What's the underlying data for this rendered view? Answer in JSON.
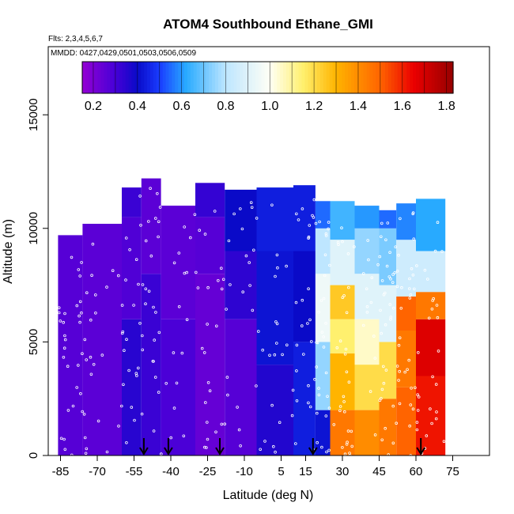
{
  "chart_data": {
    "type": "heatmap",
    "title": "ATOM4 Southbound Ethane_GMI",
    "flights_label": "Flts: 2,3,4,5,6,7",
    "dates_label": "MMDD: 0427,0429,0501,0503,0506,0509",
    "xlabel": "Latitude (deg N)",
    "ylabel": "Altitude (m)",
    "xlim": [
      -90,
      90
    ],
    "ylim": [
      0,
      18000
    ],
    "x_ticks": [
      -85,
      -70,
      -55,
      -40,
      -25,
      -10,
      5,
      15,
      30,
      45,
      60,
      75
    ],
    "x_tick_labels": [
      "-85",
      "-70",
      "-55",
      "-40",
      "-25",
      "-10",
      "5",
      "15",
      "30",
      "45",
      "60",
      "75"
    ],
    "y_ticks": [
      0,
      5000,
      10000,
      15000
    ],
    "y_tick_labels": [
      "0",
      "5000",
      "10000",
      "15000"
    ],
    "colorbar": {
      "min": 0.15,
      "max": 1.83,
      "ticks": [
        0.2,
        0.4,
        0.6,
        0.8,
        1.0,
        1.2,
        1.4,
        1.6,
        1.8
      ],
      "tick_labels": [
        "0.2",
        "0.4",
        "0.6",
        "0.8",
        "1.0",
        "1.2",
        "1.4",
        "1.6",
        "1.8"
      ]
    },
    "columns": [
      {
        "lat_start": -86,
        "lat_end": -76,
        "top": 9700,
        "values": [
          {
            "z": 0,
            "v": 0.27
          }
        ]
      },
      {
        "lat_start": -76,
        "lat_end": -60,
        "top": 10200,
        "values": [
          {
            "z": 0,
            "v": 0.26
          }
        ]
      },
      {
        "lat_start": -60,
        "lat_end": -52,
        "top": 11800,
        "values": [
          {
            "z": 0,
            "v": 0.35
          },
          {
            "z": 6000,
            "v": 0.28
          },
          {
            "z": 10500,
            "v": 0.32
          }
        ]
      },
      {
        "lat_start": -52,
        "lat_end": -44,
        "top": 12200,
        "values": [
          {
            "z": 0,
            "v": 0.32
          },
          {
            "z": 8000,
            "v": 0.26
          }
        ]
      },
      {
        "lat_start": -44,
        "lat_end": -30,
        "top": 11000,
        "values": [
          {
            "z": 0,
            "v": 0.29
          },
          {
            "z": 6000,
            "v": 0.26
          }
        ]
      },
      {
        "lat_start": -30,
        "lat_end": -18,
        "top": 12000,
        "values": [
          {
            "z": 0,
            "v": 0.24
          },
          {
            "z": 8000,
            "v": 0.27
          },
          {
            "z": 10500,
            "v": 0.33
          }
        ]
      },
      {
        "lat_start": -18,
        "lat_end": -5,
        "top": 11700,
        "values": [
          {
            "z": 0,
            "v": 0.27
          },
          {
            "z": 6000,
            "v": 0.34
          },
          {
            "z": 9000,
            "v": 0.4
          }
        ]
      },
      {
        "lat_start": -5,
        "lat_end": 10,
        "top": 11800,
        "values": [
          {
            "z": 0,
            "v": 0.36
          },
          {
            "z": 4000,
            "v": 0.42
          },
          {
            "z": 9000,
            "v": 0.44
          }
        ]
      },
      {
        "lat_start": 10,
        "lat_end": 19,
        "top": 11900,
        "values": [
          {
            "z": 0,
            "v": 0.44
          },
          {
            "z": 5000,
            "v": 0.4
          },
          {
            "z": 9000,
            "v": 0.44
          }
        ]
      },
      {
        "lat_start": 19,
        "lat_end": 25,
        "top": 11200,
        "values": [
          {
            "z": 0,
            "v": 0.42
          },
          {
            "z": 2000,
            "v": 0.75
          },
          {
            "z": 5000,
            "v": 0.95
          },
          {
            "z": 8000,
            "v": 0.8
          },
          {
            "z": 10000,
            "v": 0.55
          }
        ]
      },
      {
        "lat_start": 25,
        "lat_end": 35,
        "top": 11200,
        "values": [
          {
            "z": 0,
            "v": 1.45
          },
          {
            "z": 2000,
            "v": 1.3
          },
          {
            "z": 4500,
            "v": 1.15
          },
          {
            "z": 6000,
            "v": 1.25
          },
          {
            "z": 7500,
            "v": 0.9
          },
          {
            "z": 9500,
            "v": 0.65
          }
        ]
      },
      {
        "lat_start": 35,
        "lat_end": 45,
        "top": 11000,
        "values": [
          {
            "z": 0,
            "v": 1.4
          },
          {
            "z": 2000,
            "v": 1.2
          },
          {
            "z": 4000,
            "v": 1.05
          },
          {
            "z": 6000,
            "v": 0.9
          },
          {
            "z": 8000,
            "v": 0.75
          },
          {
            "z": 10000,
            "v": 0.6
          }
        ]
      },
      {
        "lat_start": 45,
        "lat_end": 52,
        "top": 10800,
        "values": [
          {
            "z": 0,
            "v": 1.45
          },
          {
            "z": 2500,
            "v": 1.2
          },
          {
            "z": 5000,
            "v": 0.9
          },
          {
            "z": 7500,
            "v": 0.72
          },
          {
            "z": 10000,
            "v": 0.55
          }
        ]
      },
      {
        "lat_start": 52,
        "lat_end": 60,
        "top": 11100,
        "values": [
          {
            "z": 0,
            "v": 1.5
          },
          {
            "z": 3000,
            "v": 1.45
          },
          {
            "z": 5500,
            "v": 1.5
          },
          {
            "z": 7000,
            "v": 0.85
          },
          {
            "z": 9500,
            "v": 0.58
          }
        ]
      },
      {
        "lat_start": 60,
        "lat_end": 72,
        "top": 11300,
        "values": [
          {
            "z": 0,
            "v": 1.62
          },
          {
            "z": 3500,
            "v": 1.68
          },
          {
            "z": 6000,
            "v": 1.45
          },
          {
            "z": 7200,
            "v": 0.85
          },
          {
            "z": 9000,
            "v": 0.62
          }
        ]
      }
    ],
    "profile_arrows_lat": [
      -51,
      -41,
      -20,
      18,
      62
    ]
  }
}
